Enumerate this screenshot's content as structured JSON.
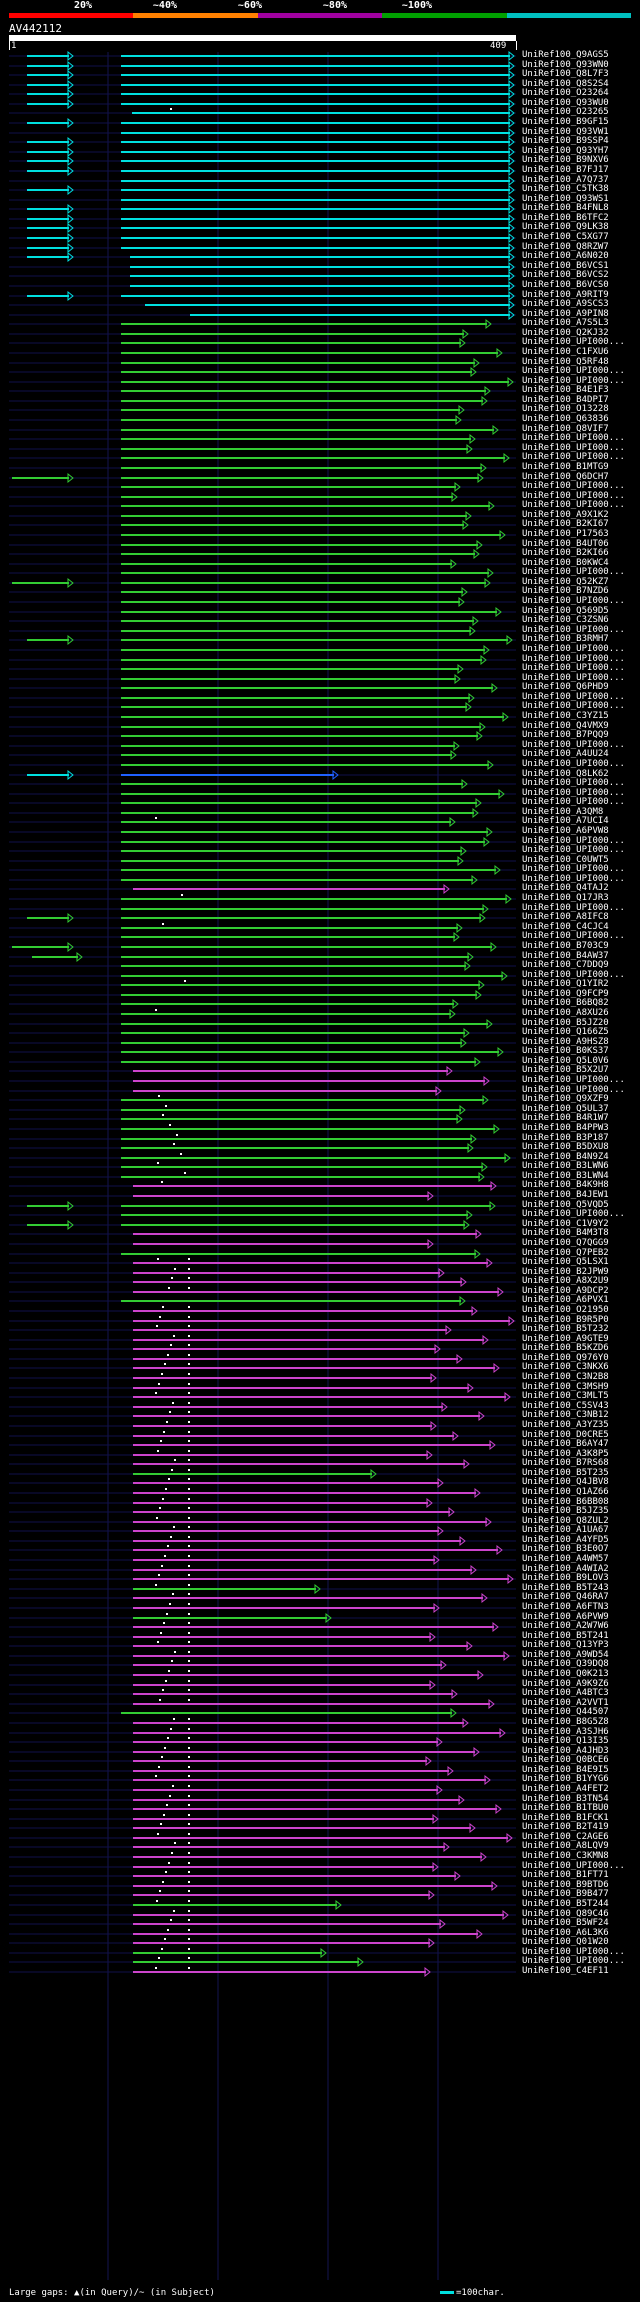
{
  "scale": {
    "labels": [
      "20%",
      "~40%",
      "~60%",
      "~80%",
      "~100%"
    ],
    "colors": [
      "#ff0000",
      "#ff8000",
      "#a000a0",
      "#00a000",
      "#00c0c0"
    ]
  },
  "query": {
    "id": "AV442112",
    "start": "1",
    "end": "409"
  },
  "footer": "Large gaps: ▲(in Query)/~ (in Subject)",
  "legend": "=100char.",
  "colors": {
    "cyan": "#00e0e0",
    "green": "#33cc33",
    "magenta": "#cc44cc",
    "blue": "#2060ff",
    "grid": "#0000a0"
  },
  "hits": [
    {
      "label": "UniRef100_Q9AGS5",
      "color": "cyan",
      "extra": "s"
    },
    {
      "label": "UniRef100_Q93WN0",
      "color": "cyan",
      "extra": "s"
    },
    {
      "label": "UniRef100_Q8L7F3",
      "color": "cyan",
      "extra": "s"
    },
    {
      "label": "UniRef100_Q8S2S4",
      "color": "cyan",
      "extra": "s"
    },
    {
      "label": "UniRef100_O23264",
      "color": "cyan",
      "extra": "s"
    },
    {
      "label": "UniRef100_Q93WU0",
      "color": "cyan",
      "extra": "s"
    },
    {
      "label": "UniRef100_O23265",
      "color": "cyan",
      "extra": "t"
    },
    {
      "label": "UniRef100_B9GF15",
      "color": "cyan",
      "extra": "s"
    },
    {
      "label": "UniRef100_Q93VW1",
      "color": "cyan",
      "extra": ""
    },
    {
      "label": "UniRef100_B9SSP4",
      "color": "cyan",
      "extra": "s"
    },
    {
      "label": "UniRef100_Q93YH7",
      "color": "cyan",
      "extra": "s"
    },
    {
      "label": "UniRef100_B9NXV6",
      "color": "cyan",
      "extra": "s"
    },
    {
      "label": "UniRef100_B7FJ17",
      "color": "cyan",
      "extra": "s"
    },
    {
      "label": "UniRef100_A7Q737",
      "color": "cyan",
      "extra": ""
    },
    {
      "label": "UniRef100_C5TK38",
      "color": "cyan",
      "extra": "s"
    },
    {
      "label": "UniRef100_Q93WS1",
      "color": "cyan",
      "extra": ""
    },
    {
      "label": "UniRef100_B4FNL8",
      "color": "cyan",
      "extra": "s"
    },
    {
      "label": "UniRef100_B6TFC2",
      "color": "cyan",
      "extra": "s"
    },
    {
      "label": "UniRef100_Q9LK38",
      "color": "cyan",
      "extra": "s"
    },
    {
      "label": "UniRef100_C5XG77",
      "color": "cyan",
      "extra": "s"
    },
    {
      "label": "UniRef100_Q8RZW7",
      "color": "cyan",
      "extra": "s"
    },
    {
      "label": "UniRef100_A6N020",
      "color": "cyan",
      "extra": "s"
    },
    {
      "label": "UniRef100_B6VCS1",
      "color": "cyan",
      "extra": ""
    },
    {
      "label": "UniRef100_B6VCS2",
      "color": "cyan",
      "extra": ""
    },
    {
      "label": "UniRef100_B6VCS0",
      "color": "cyan",
      "extra": ""
    },
    {
      "label": "UniRef100_A9RIT9",
      "color": "cyan",
      "extra": "s"
    },
    {
      "label": "UniRef100_A9SCS3",
      "color": "cyan",
      "extra": ""
    },
    {
      "label": "UniRef100_A9PIN8",
      "color": "cyan",
      "extra": ""
    },
    {
      "label": "UniRef100_A7S5L3",
      "color": "green",
      "extra": ""
    },
    {
      "label": "UniRef100_Q2KJ32",
      "color": "green",
      "extra": ""
    },
    {
      "label": "UniRef100_UPI000...",
      "color": "green",
      "extra": ""
    },
    {
      "label": "UniRef100_C1FXU6",
      "color": "green",
      "extra": ""
    },
    {
      "label": "UniRef100_Q5RF48",
      "color": "green",
      "extra": ""
    },
    {
      "label": "UniRef100_UPI000...",
      "color": "green",
      "extra": ""
    },
    {
      "label": "UniRef100_UPI000...",
      "color": "green",
      "extra": ""
    },
    {
      "label": "UniRef100_B4E1F3",
      "color": "green",
      "extra": ""
    },
    {
      "label": "UniRef100_B4DPI7",
      "color": "green",
      "extra": ""
    },
    {
      "label": "UniRef100_O13228",
      "color": "green",
      "extra": ""
    },
    {
      "label": "UniRef100_Q63836",
      "color": "green",
      "extra": ""
    },
    {
      "label": "UniRef100_Q8VIF7",
      "color": "green",
      "extra": ""
    },
    {
      "label": "UniRef100_UPI000...",
      "color": "green",
      "extra": ""
    },
    {
      "label": "UniRef100_UPI000...",
      "color": "green",
      "extra": ""
    },
    {
      "label": "UniRef100_UPI000...",
      "color": "green",
      "extra": ""
    },
    {
      "label": "UniRef100_B1MTG9",
      "color": "green",
      "extra": ""
    },
    {
      "label": "UniRef100_Q6DCH7",
      "color": "green",
      "extra": "g"
    },
    {
      "label": "UniRef100_UPI000...",
      "color": "green",
      "extra": ""
    },
    {
      "label": "UniRef100_UPI000...",
      "color": "green",
      "extra": ""
    },
    {
      "label": "UniRef100_UPI000...",
      "color": "green",
      "extra": ""
    },
    {
      "label": "UniRef100_A9X1K2",
      "color": "green",
      "extra": ""
    },
    {
      "label": "UniRef100_B2KI67",
      "color": "green",
      "extra": ""
    },
    {
      "label": "UniRef100_P17563",
      "color": "green",
      "extra": ""
    },
    {
      "label": "UniRef100_B4UT06",
      "color": "green",
      "extra": ""
    },
    {
      "label": "UniRef100_B2KI66",
      "color": "green",
      "extra": ""
    },
    {
      "label": "UniRef100_B0KWC4",
      "color": "green",
      "extra": ""
    },
    {
      "label": "UniRef100_UPI000...",
      "color": "green",
      "extra": ""
    },
    {
      "label": "UniRef100_Q52KZ7",
      "color": "green",
      "extra": "g"
    },
    {
      "label": "UniRef100_B7NZD6",
      "color": "green",
      "extra": ""
    },
    {
      "label": "UniRef100_UPI000...",
      "color": "green",
      "extra": ""
    },
    {
      "label": "UniRef100_Q569D5",
      "color": "green",
      "extra": ""
    },
    {
      "label": "UniRef100_C3ZSN6",
      "color": "green",
      "extra": ""
    },
    {
      "label": "UniRef100_UPI000...",
      "color": "green",
      "extra": ""
    },
    {
      "label": "UniRef100_B3RMH7",
      "color": "green",
      "extra": "s"
    },
    {
      "label": "UniRef100_UPI000...",
      "color": "green",
      "extra": ""
    },
    {
      "label": "UniRef100_UPI000...",
      "color": "green",
      "extra": ""
    },
    {
      "label": "UniRef100_UPI000...",
      "color": "green",
      "extra": ""
    },
    {
      "label": "UniRef100_UPI000...",
      "color": "green",
      "extra": ""
    },
    {
      "label": "UniRef100_Q6PHD9",
      "color": "green",
      "extra": ""
    },
    {
      "label": "UniRef100_UPI000...",
      "color": "green",
      "extra": ""
    },
    {
      "label": "UniRef100_UPI000...",
      "color": "green",
      "extra": ""
    },
    {
      "label": "UniRef100_C3YZ15",
      "color": "green",
      "extra": ""
    },
    {
      "label": "UniRef100_Q4VMX9",
      "color": "green",
      "extra": ""
    },
    {
      "label": "UniRef100_B7PQQ9",
      "color": "green",
      "extra": ""
    },
    {
      "label": "UniRef100_UPI000...",
      "color": "green",
      "extra": ""
    },
    {
      "label": "UniRef100_A4UU24",
      "color": "green",
      "extra": ""
    },
    {
      "label": "UniRef100_UPI000...",
      "color": "green",
      "extra": ""
    },
    {
      "label": "UniRef100_Q8LK62",
      "color": "blue",
      "extra": "s"
    },
    {
      "label": "UniRef100_UPI000...",
      "color": "green",
      "extra": ""
    },
    {
      "label": "UniRef100_UPI000...",
      "color": "green",
      "extra": ""
    },
    {
      "label": "UniRef100_UPI000...",
      "color": "green",
      "extra": ""
    },
    {
      "label": "UniRef100_A3QM8",
      "color": "green",
      "extra": ""
    },
    {
      "label": "UniRef100_A7UCI4",
      "color": "green",
      "extra": "d"
    },
    {
      "label": "UniRef100_A6PVW8",
      "color": "green",
      "extra": ""
    },
    {
      "label": "UniRef100_UPI000...",
      "color": "green",
      "extra": ""
    },
    {
      "label": "UniRef100_UPI000...",
      "color": "green",
      "extra": ""
    },
    {
      "label": "UniRef100_C0UWT5",
      "color": "green",
      "extra": ""
    },
    {
      "label": "UniRef100_UPI000...",
      "color": "green",
      "extra": ""
    },
    {
      "label": "UniRef100_UPI000...",
      "color": "green",
      "extra": ""
    },
    {
      "label": "UniRef100_Q4TAJ2",
      "color": "magenta",
      "extra": ""
    },
    {
      "label": "UniRef100_Q17JR3",
      "color": "green",
      "extra": "d"
    },
    {
      "label": "UniRef100_UPI000...",
      "color": "green",
      "extra": ""
    },
    {
      "label": "UniRef100_A8IFC8",
      "color": "green",
      "extra": "s"
    },
    {
      "label": "UniRef100_C4CJC4",
      "color": "green",
      "extra": "d"
    },
    {
      "label": "UniRef100_UPI000...",
      "color": "green",
      "extra": ""
    },
    {
      "label": "UniRef100_B703C9",
      "color": "green",
      "extra": "g"
    },
    {
      "label": "UniRef100_B4AW37",
      "color": "green",
      "extra": "g2"
    },
    {
      "label": "UniRef100_C7DDQ9",
      "color": "green",
      "extra": ""
    },
    {
      "label": "UniRef100_UPI000...",
      "color": "green",
      "extra": ""
    },
    {
      "label": "UniRef100_Q1YIR2",
      "color": "green",
      "extra": "d"
    },
    {
      "label": "UniRef100_Q9FCP9",
      "color": "green",
      "extra": ""
    },
    {
      "label": "UniRef100_B6BQ82",
      "color": "green",
      "extra": ""
    },
    {
      "label": "UniRef100_A8XU26",
      "color": "green",
      "extra": "d"
    },
    {
      "label": "UniRef100_B5JZ20",
      "color": "green",
      "extra": ""
    },
    {
      "label": "UniRef100_Q166Z5",
      "color": "green",
      "extra": ""
    },
    {
      "label": "UniRef100_A9HSZ8",
      "color": "green",
      "extra": ""
    },
    {
      "label": "UniRef100_B0KS37",
      "color": "green",
      "extra": ""
    },
    {
      "label": "UniRef100_Q5L0V6",
      "color": "green",
      "extra": ""
    },
    {
      "label": "UniRef100_B5X2U7",
      "color": "magenta",
      "extra": ""
    },
    {
      "label": "UniRef100_UPI000...",
      "color": "magenta",
      "extra": ""
    },
    {
      "label": "UniRef100_UPI000...",
      "color": "magenta",
      "extra": ""
    },
    {
      "label": "UniRef100_Q9XZF9",
      "color": "green",
      "extra": "d"
    },
    {
      "label": "UniRef100_Q5UL37",
      "color": "green",
      "extra": "d"
    },
    {
      "label": "UniRef100_B4R1W7",
      "color": "green",
      "extra": "d"
    },
    {
      "label": "UniRef100_B4PPW3",
      "color": "green",
      "extra": "d"
    },
    {
      "label": "UniRef100_B3P187",
      "color": "green",
      "extra": "d"
    },
    {
      "label": "UniRef100_B5DXU8",
      "color": "green",
      "extra": "d"
    },
    {
      "label": "UniRef100_B4N9Z4",
      "color": "green",
      "extra": "d"
    },
    {
      "label": "UniRef100_B3LWN6",
      "color": "green",
      "extra": "d"
    },
    {
      "label": "UniRef100_B3LWN4",
      "color": "green",
      "extra": "d"
    },
    {
      "label": "UniRef100_B4K9H8",
      "color": "magenta",
      "extra": "d"
    },
    {
      "label": "UniRef100_B4JEW1",
      "color": "magenta",
      "extra": ""
    },
    {
      "label": "UniRef100_Q5VQD5",
      "color": "green",
      "extra": "s"
    },
    {
      "label": "UniRef100_UPI000...",
      "color": "green",
      "extra": ""
    },
    {
      "label": "UniRef100_C1V9Y2",
      "color": "green",
      "extra": "s"
    },
    {
      "label": "UniRef100_B4M3T8",
      "color": "magenta",
      "extra": ""
    },
    {
      "label": "UniRef100_Q7QGG9",
      "color": "magenta",
      "extra": ""
    },
    {
      "label": "UniRef100_Q7PEB2",
      "color": "green",
      "extra": ""
    },
    {
      "label": "UniRef100_Q5LSX1",
      "color": "magenta",
      "extra": "d2"
    },
    {
      "label": "UniRef100_B2JPW9",
      "color": "magenta",
      "extra": "d2"
    },
    {
      "label": "UniRef100_A8X2U9",
      "color": "magenta",
      "extra": "d2"
    },
    {
      "label": "UniRef100_A9DCP2",
      "color": "magenta",
      "extra": "d2"
    },
    {
      "label": "UniRef100_A6PVX1",
      "color": "green",
      "extra": ""
    },
    {
      "label": "UniRef100_O21950",
      "color": "magenta",
      "extra": "d2"
    },
    {
      "label": "UniRef100_B9R5P0",
      "color": "magenta",
      "extra": "d2"
    },
    {
      "label": "UniRef100_B5T232",
      "color": "magenta",
      "extra": "d2"
    },
    {
      "label": "UniRef100_A9GTE9",
      "color": "magenta",
      "extra": "d2"
    },
    {
      "label": "UniRef100_B5KZD6",
      "color": "magenta",
      "extra": "d2"
    },
    {
      "label": "UniRef100_Q976Y0",
      "color": "magenta",
      "extra": "d2"
    },
    {
      "label": "UniRef100_C3NKX6",
      "color": "magenta",
      "extra": "d2"
    },
    {
      "label": "UniRef100_C3N2B8",
      "color": "magenta",
      "extra": "d2"
    },
    {
      "label": "UniRef100_C3MSH9",
      "color": "magenta",
      "extra": "d2"
    },
    {
      "label": "UniRef100_C3MLT5",
      "color": "magenta",
      "extra": "d2"
    },
    {
      "label": "UniRef100_C5SV43",
      "color": "magenta",
      "extra": "d2"
    },
    {
      "label": "UniRef100_C3NB12",
      "color": "magenta",
      "extra": "d2"
    },
    {
      "label": "UniRef100_A3YZ35",
      "color": "magenta",
      "extra": "d2"
    },
    {
      "label": "UniRef100_D0CRE5",
      "color": "magenta",
      "extra": "d2"
    },
    {
      "label": "UniRef100_B6AY47",
      "color": "magenta",
      "extra": "d2"
    },
    {
      "label": "UniRef100_A3K8P5",
      "color": "magenta",
      "extra": "d2"
    },
    {
      "label": "UniRef100_B7RS68",
      "color": "magenta",
      "extra": "d2"
    },
    {
      "label": "UniRef100_B5T235",
      "color": "green",
      "extra": "d2"
    },
    {
      "label": "UniRef100_Q4JBV8",
      "color": "magenta",
      "extra": "d2"
    },
    {
      "label": "UniRef100_Q1AZ66",
      "color": "magenta",
      "extra": "d2"
    },
    {
      "label": "UniRef100_B6BB08",
      "color": "magenta",
      "extra": "d2"
    },
    {
      "label": "UniRef100_B5JZ35",
      "color": "magenta",
      "extra": "d2"
    },
    {
      "label": "UniRef100_Q8ZUL2",
      "color": "magenta",
      "extra": "d2"
    },
    {
      "label": "UniRef100_A1UA67",
      "color": "magenta",
      "extra": "d2"
    },
    {
      "label": "UniRef100_A4YFD5",
      "color": "magenta",
      "extra": "d2"
    },
    {
      "label": "UniRef100_B3E0O7",
      "color": "magenta",
      "extra": "d2"
    },
    {
      "label": "UniRef100_A4WM57",
      "color": "magenta",
      "extra": "d2"
    },
    {
      "label": "UniRef100_A4WIA2",
      "color": "magenta",
      "extra": "d2"
    },
    {
      "label": "UniRef100_B9LOV3",
      "color": "magenta",
      "extra": "d2"
    },
    {
      "label": "UniRef100_B5T243",
      "color": "green",
      "extra": "d2"
    },
    {
      "label": "UniRef100_Q46RA7",
      "color": "magenta",
      "extra": "d2"
    },
    {
      "label": "UniRef100_A6FTN3",
      "color": "magenta",
      "extra": "d2"
    },
    {
      "label": "UniRef100_A6PVW9",
      "color": "green",
      "extra": "d2"
    },
    {
      "label": "UniRef100_A2W7W6",
      "color": "magenta",
      "extra": "d2"
    },
    {
      "label": "UniRef100_B5T241",
      "color": "magenta",
      "extra": "d2"
    },
    {
      "label": "UniRef100_Q13YP3",
      "color": "magenta",
      "extra": "d2"
    },
    {
      "label": "UniRef100_A9WD54",
      "color": "magenta",
      "extra": "d2"
    },
    {
      "label": "UniRef100_Q39DQ8",
      "color": "magenta",
      "extra": "d2"
    },
    {
      "label": "UniRef100_Q0K213",
      "color": "magenta",
      "extra": "d2"
    },
    {
      "label": "UniRef100_A9K9Z6",
      "color": "magenta",
      "extra": "d2"
    },
    {
      "label": "UniRef100_A4BTC3",
      "color": "magenta",
      "extra": "d2"
    },
    {
      "label": "UniRef100_A2VVT1",
      "color": "magenta",
      "extra": "d2"
    },
    {
      "label": "UniRef100_Q44507",
      "color": "green",
      "extra": ""
    },
    {
      "label": "UniRef100_B8G5Z8",
      "color": "magenta",
      "extra": "d2"
    },
    {
      "label": "UniRef100_A3SJH6",
      "color": "magenta",
      "extra": "d2"
    },
    {
      "label": "UniRef100_Q13I35",
      "color": "magenta",
      "extra": "d2"
    },
    {
      "label": "UniRef100_A4JHD3",
      "color": "magenta",
      "extra": "d2"
    },
    {
      "label": "UniRef100_Q0BCE6",
      "color": "magenta",
      "extra": "d2"
    },
    {
      "label": "UniRef100_B4E9I5",
      "color": "magenta",
      "extra": "d2"
    },
    {
      "label": "UniRef100_B1YYG6",
      "color": "magenta",
      "extra": "d2"
    },
    {
      "label": "UniRef100_A4FET2",
      "color": "magenta",
      "extra": "d2"
    },
    {
      "label": "UniRef100_B3TN54",
      "color": "magenta",
      "extra": "d2"
    },
    {
      "label": "UniRef100_B1TBU0",
      "color": "magenta",
      "extra": "d2"
    },
    {
      "label": "UniRef100_B1FCK1",
      "color": "magenta",
      "extra": "d2"
    },
    {
      "label": "UniRef100_B2T419",
      "color": "magenta",
      "extra": "d2"
    },
    {
      "label": "UniRef100_C2AGE6",
      "color": "magenta",
      "extra": "d2"
    },
    {
      "label": "UniRef100_A8LQV9",
      "color": "magenta",
      "extra": "d2"
    },
    {
      "label": "UniRef100_C3KMN8",
      "color": "magenta",
      "extra": "d2"
    },
    {
      "label": "UniRef100_UPI000...",
      "color": "magenta",
      "extra": "d2"
    },
    {
      "label": "UniRef100_B1FT71",
      "color": "magenta",
      "extra": "d2"
    },
    {
      "label": "UniRef100_B9BTD6",
      "color": "magenta",
      "extra": "d2"
    },
    {
      "label": "UniRef100_B9B477",
      "color": "magenta",
      "extra": "d2"
    },
    {
      "label": "UniRef100_B5T244",
      "color": "green",
      "extra": "d2"
    },
    {
      "label": "UniRef100_Q89C46",
      "color": "magenta",
      "extra": "d2"
    },
    {
      "label": "UniRef100_B5WF24",
      "color": "magenta",
      "extra": "d2"
    },
    {
      "label": "UniRef100_A6L3K6",
      "color": "magenta",
      "extra": "d2"
    },
    {
      "label": "UniRef100_Q01W20",
      "color": "magenta",
      "extra": "d2"
    },
    {
      "label": "UniRef100_UPI000...",
      "color": "green",
      "extra": "d2"
    },
    {
      "label": "UniRef100_UPI000...",
      "color": "green",
      "extra": "d2"
    },
    {
      "label": "UniRef100_C4EF11",
      "color": "magenta",
      "extra": "d2"
    }
  ]
}
